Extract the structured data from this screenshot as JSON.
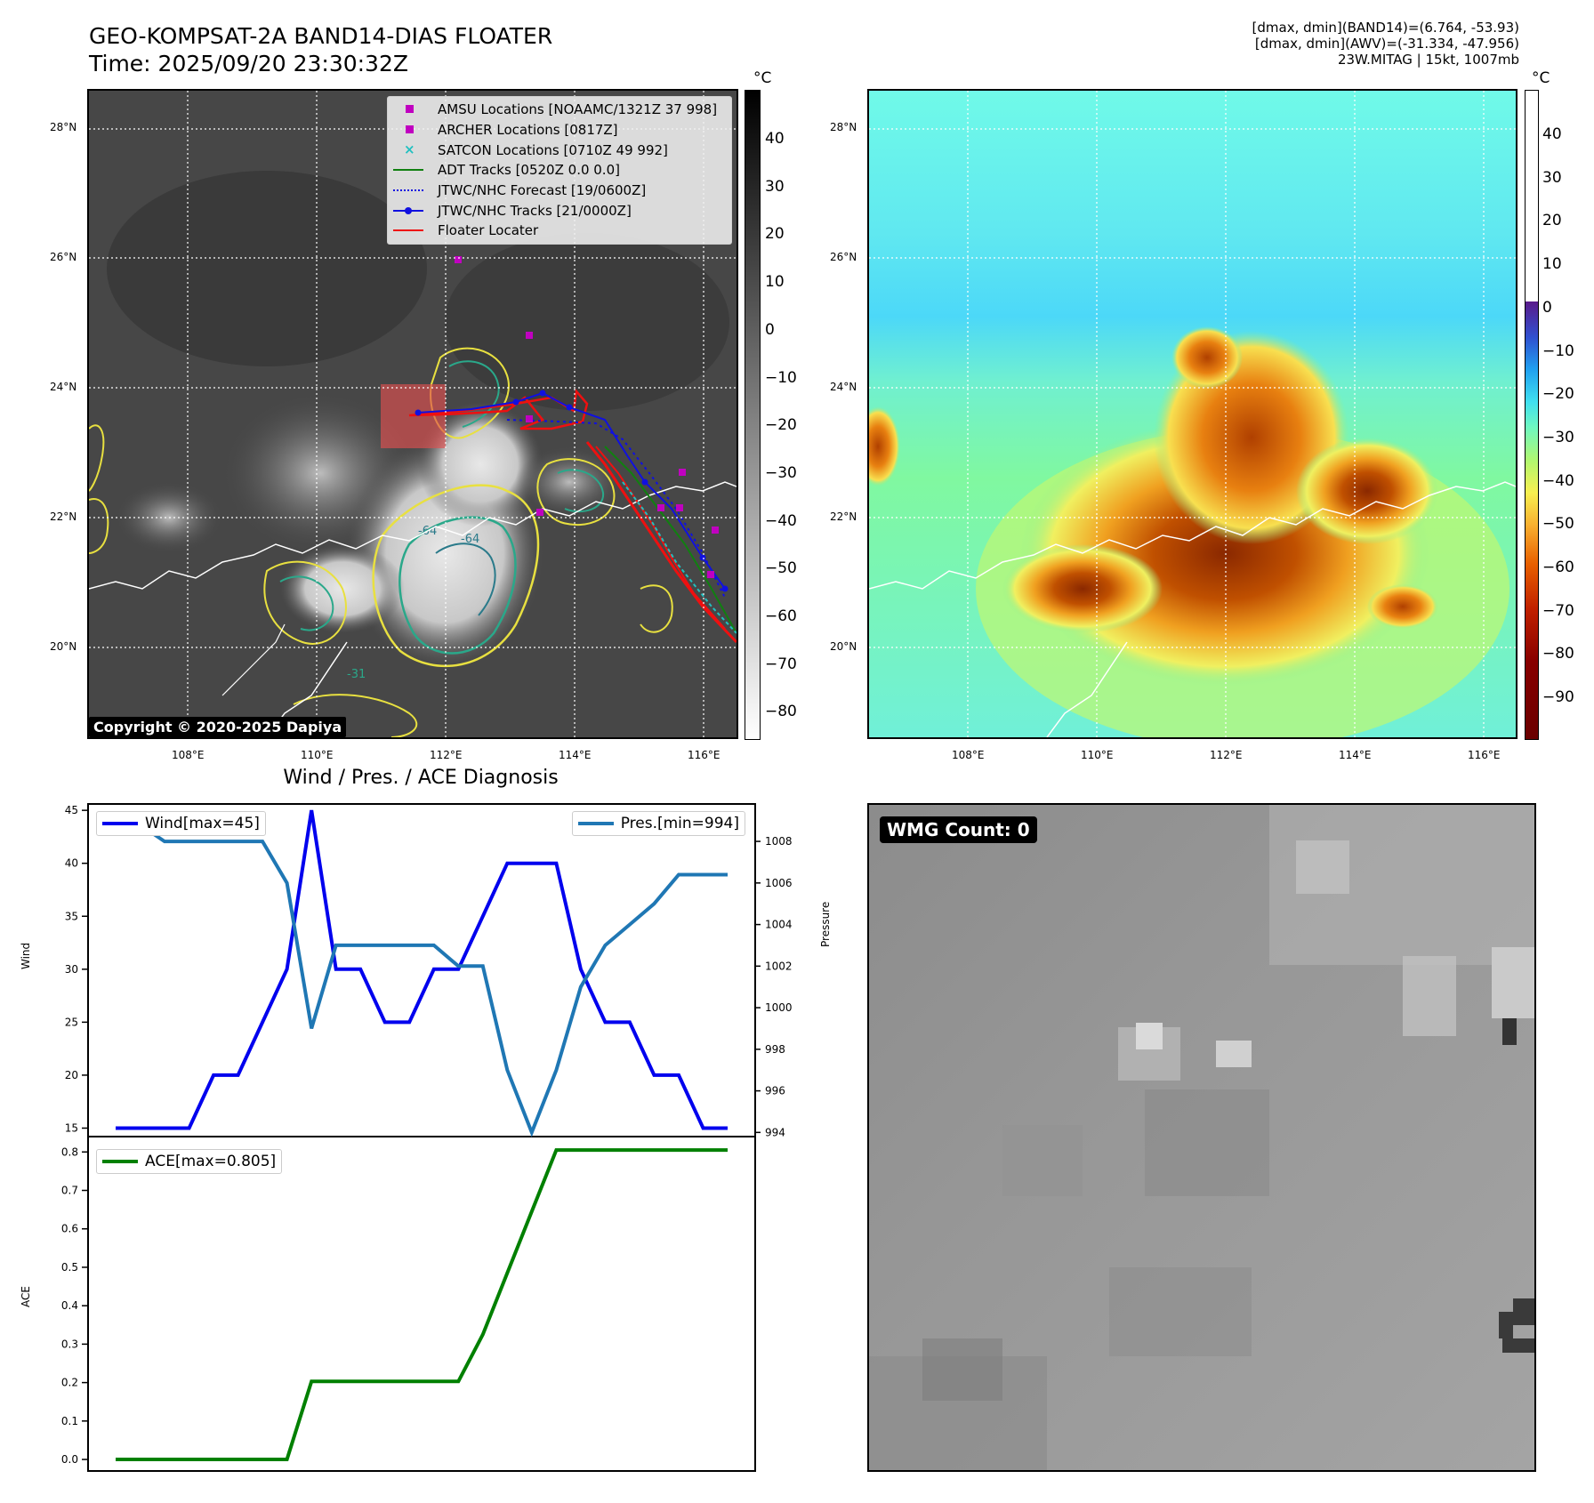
{
  "header": {
    "title_line1": "GEO-KOMPSAT-2A BAND14-DIAS FLOATER",
    "title_line2": "Time: 2025/09/20 23:30:32Z",
    "info_line1": "[dmax, dmin](BAND14)=(6.764, -53.93)",
    "info_line2": "[dmax, dmin](AWV)=(-31.334, -47.956)",
    "info_line3": "23W.MITAG | 15kt, 1007mb"
  },
  "ir_map": {
    "lat_labels": [
      "28°N",
      "26°N",
      "24°N",
      "22°N",
      "20°N"
    ],
    "lon_labels": [
      "108°E",
      "110°E",
      "112°E",
      "114°E",
      "116°E"
    ],
    "colorbar_unit": "°C",
    "colorbar_ticks": [
      "40",
      "30",
      "20",
      "10",
      "0",
      "−10",
      "−20",
      "−30",
      "−40",
      "−50",
      "−60",
      "−70",
      "−80"
    ],
    "contour_labels": [
      "-64",
      "-64",
      "-31"
    ],
    "copyright": "Copyright © 2020-2025 Dapiya",
    "legend": [
      {
        "label": "AMSU Locations [NOAAMC/1321Z 37 998]",
        "color": "#c000c0",
        "symbol": "square"
      },
      {
        "label": "ARCHER Locations [0817Z]",
        "color": "#c000c0",
        "symbol": "square"
      },
      {
        "label": "SATCON Locations [0710Z 49 992]",
        "color": "#20c0c0",
        "symbol": "x"
      },
      {
        "label": "ADT Tracks [0520Z 0.0 0.0]",
        "color": "#108010",
        "symbol": "line"
      },
      {
        "label": "JTWC/NHC Forecast [19/0600Z]",
        "color": "#1010e0",
        "symbol": "dotted"
      },
      {
        "label": "JTWC/NHC Tracks [21/0000Z]",
        "color": "#1010e0",
        "symbol": "line-dot"
      },
      {
        "label": "Floater Locater",
        "color": "#ee1010",
        "symbol": "line"
      }
    ]
  },
  "wv_map": {
    "lat_labels": [
      "28°N",
      "26°N",
      "24°N",
      "22°N",
      "20°N"
    ],
    "lon_labels": [
      "108°E",
      "110°E",
      "112°E",
      "114°E",
      "116°E"
    ],
    "colorbar_unit": "°C",
    "colorbar_ticks": [
      "40",
      "30",
      "20",
      "10",
      "0",
      "−10",
      "−20",
      "−30",
      "−40",
      "−50",
      "−60",
      "−70",
      "−80",
      "−90"
    ]
  },
  "diag": {
    "title": "Wind / Pres. / ACE Diagnosis",
    "wind_axis_label": "Wind",
    "pressure_axis_label": "Pressure",
    "ace_axis_label": "ACE",
    "wind_legend": "Wind[max=45]",
    "pressure_legend": "Pres.[min=994]",
    "ace_legend": "ACE[max=0.805]",
    "wind_ticks": [
      "45",
      "40",
      "35",
      "30",
      "25",
      "20",
      "15"
    ],
    "pressure_ticks": [
      "1008",
      "1006",
      "1004",
      "1002",
      "1000",
      "998",
      "996",
      "994"
    ],
    "ace_ticks": [
      "0.8",
      "0.7",
      "0.6",
      "0.5",
      "0.4",
      "0.3",
      "0.2",
      "0.1",
      "0.0"
    ]
  },
  "wmg": {
    "count_label": "WMG Count: 0"
  },
  "colors": {
    "wind": "#0000ee",
    "pressure": "#1f77b4",
    "ace": "#008000"
  },
  "chart_data": [
    {
      "type": "line",
      "x": [
        0,
        1,
        2,
        3,
        4,
        5,
        6,
        7,
        8,
        9,
        10,
        11,
        12,
        13,
        14,
        15,
        16,
        17,
        18,
        19,
        20,
        21,
        22,
        23,
        24,
        25
      ],
      "series": [
        {
          "name": "Wind[max=45]",
          "axis": "left",
          "values": [
            15,
            15,
            15,
            15,
            20,
            20,
            25,
            30,
            45,
            30,
            30,
            25,
            25,
            30,
            30,
            35,
            40,
            40,
            40,
            30,
            25,
            25,
            20,
            20,
            15,
            15
          ]
        },
        {
          "name": "Pres.[min=994]",
          "axis": "right",
          "values": [
            1008.8,
            1008.8,
            1008,
            1008,
            1008,
            1008,
            1008,
            1006,
            999,
            1003,
            1003,
            1003,
            1003,
            1003,
            1002,
            1002,
            997,
            994,
            997,
            1001,
            1003,
            1004,
            1005,
            1006.4,
            1006.4,
            1006.4
          ]
        }
      ],
      "ylim_left": [
        14.2,
        45.6
      ],
      "ylim_right": [
        993.8,
        1009.8
      ],
      "ylabel_left": "Wind",
      "ylabel_right": "Pressure"
    },
    {
      "type": "line",
      "x": [
        0,
        1,
        2,
        3,
        4,
        5,
        6,
        7,
        8,
        9,
        10,
        11,
        12,
        13,
        14,
        15,
        16,
        17,
        18,
        19,
        20,
        21,
        22,
        23,
        24,
        25
      ],
      "series": [
        {
          "name": "ACE[max=0.805]",
          "values": [
            0,
            0,
            0,
            0,
            0,
            0,
            0,
            0,
            0.203,
            0.203,
            0.203,
            0.203,
            0.203,
            0.203,
            0.203,
            0.325,
            0.485,
            0.645,
            0.805,
            0.805,
            0.805,
            0.805,
            0.805,
            0.805,
            0.805,
            0.805
          ]
        }
      ],
      "ylim": [
        -0.03,
        0.84
      ],
      "ylabel": "ACE"
    }
  ]
}
